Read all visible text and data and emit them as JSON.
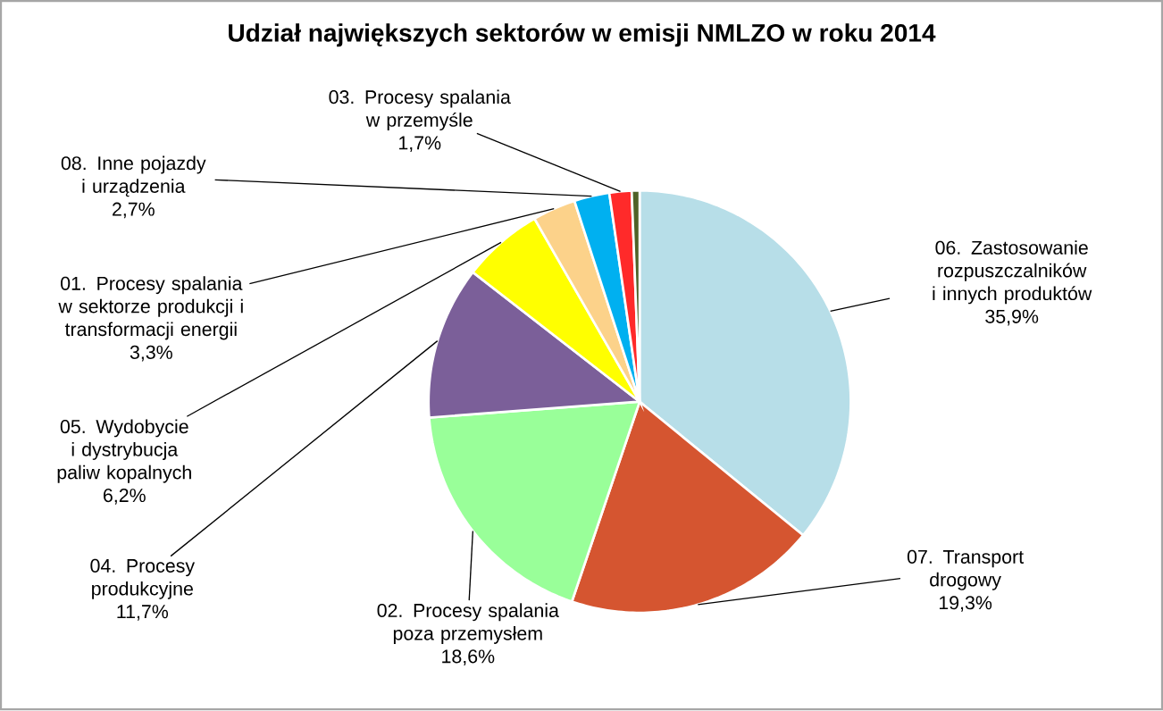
{
  "chart_data": {
    "type": "pie",
    "title": "Udział największych sektorów w emisji NMLZO w roku 2014",
    "categories": [
      "06. Zastosowanie rozpuszczalników i innych produktów",
      "07. Transport drogowy",
      "02. Procesy spalania poza przemysłem",
      "04. Procesy produkcyjne",
      "05. Wydobycie i dystrybucja paliw kopalnych",
      "01. Procesy spalania w sektorze produkcji i transformacji energii",
      "08. Inne pojazdy i urządzenia",
      "03. Procesy spalania w przemyśle",
      null
    ],
    "values": [
      35.9,
      19.3,
      18.6,
      11.7,
      6.2,
      3.3,
      2.7,
      1.7,
      0.6
    ],
    "value_labels": [
      "35,9%",
      "19,3%",
      "18,6%",
      "11,7%",
      "6,2%",
      "3,3%",
      "2,7%",
      "1,7%",
      null
    ],
    "colors": [
      "#b7dee8",
      "#d55530",
      "#99ff99",
      "#7b5f99",
      "#ffff00",
      "#fcd28a",
      "#00b0f0",
      "#ff2a2a",
      "#4f6228"
    ],
    "legend": false
  }
}
